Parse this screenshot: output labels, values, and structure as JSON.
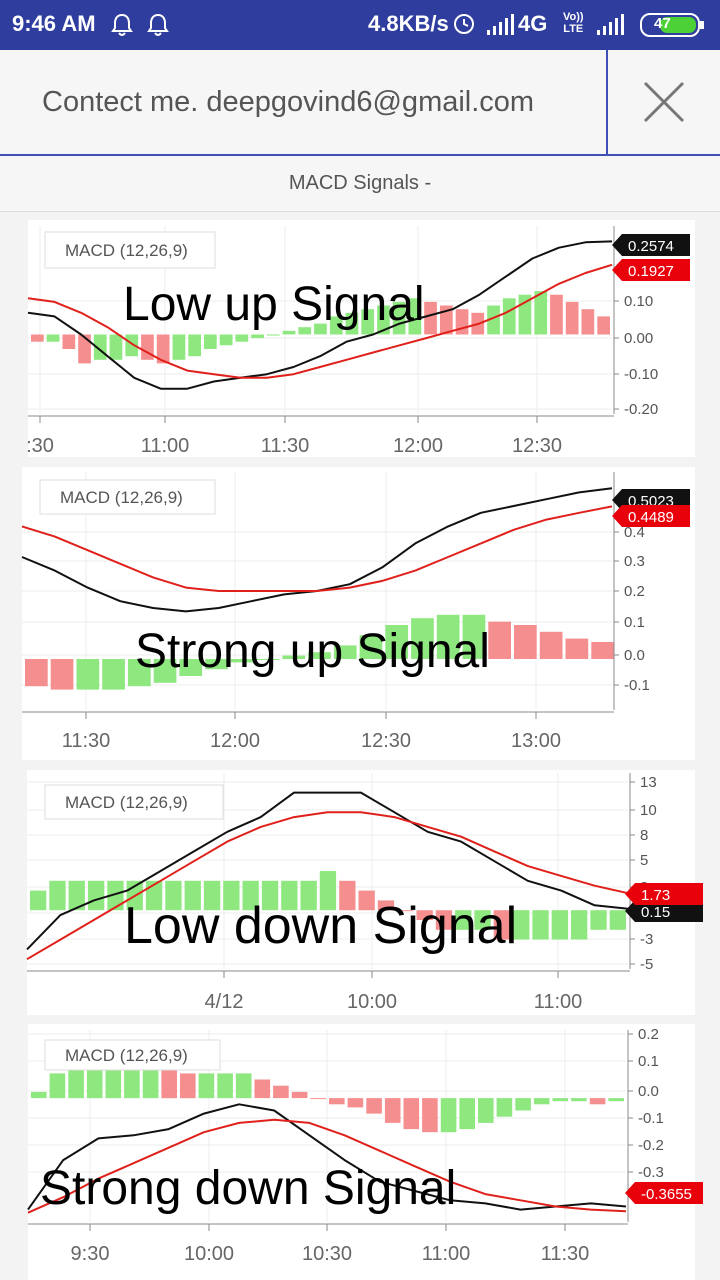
{
  "status_bar": {
    "time": "9:46 AM",
    "speed": "4.8KB/s",
    "network": "4G",
    "battery": "47",
    "volte_top": "Vo))",
    "volte_bottom": "LTE"
  },
  "header": {
    "contact_text": "Contect me. deepgovind6@gmail.com"
  },
  "subtitle": "MACD Signals -",
  "colors": {
    "status_bar": "#2f3e9e",
    "accent": "#3f51b5",
    "macd_line": "#111111",
    "signal_line": "#e0201a",
    "hist_up": "#8ee87f",
    "hist_down": "#f58f8f"
  },
  "chart_data": [
    {
      "type": "line",
      "indicator": "MACD (12,26,9)",
      "annotation": "Low up Signal",
      "x_ticks": [
        ":30",
        "11:00",
        "11:30",
        "12:00",
        "12:30"
      ],
      "y_ticks": [
        "0.10",
        "0.00",
        "-0.10",
        "-0.20"
      ],
      "ylim": [
        -0.22,
        0.3
      ],
      "series": [
        {
          "name": "MACD",
          "values": [
            0.06,
            0.05,
            0.0,
            -0.06,
            -0.12,
            -0.15,
            -0.15,
            -0.13,
            -0.12,
            -0.11,
            -0.09,
            -0.06,
            -0.02,
            0.0,
            0.03,
            0.05,
            0.07,
            0.11,
            0.16,
            0.21,
            0.24,
            0.255,
            0.2574
          ]
        },
        {
          "name": "Signal",
          "values": [
            0.1,
            0.09,
            0.06,
            0.02,
            -0.03,
            -0.07,
            -0.1,
            -0.11,
            -0.12,
            -0.12,
            -0.11,
            -0.09,
            -0.07,
            -0.05,
            -0.03,
            -0.01,
            0.01,
            0.03,
            0.06,
            0.1,
            0.14,
            0.17,
            0.1927
          ]
        }
      ],
      "histogram": [
        -0.02,
        -0.02,
        -0.04,
        -0.08,
        -0.07,
        -0.07,
        -0.06,
        -0.07,
        -0.08,
        -0.07,
        -0.06,
        -0.04,
        -0.03,
        -0.02,
        -0.01,
        0.0,
        0.01,
        0.02,
        0.03,
        0.05,
        0.06,
        0.07,
        0.08,
        0.09,
        0.1,
        0.09,
        0.08,
        0.07,
        0.06,
        0.08,
        0.1,
        0.11,
        0.12,
        0.11,
        0.09,
        0.07,
        0.05
      ],
      "labels": {
        "macd": "0.2574",
        "signal": "0.1927"
      }
    },
    {
      "type": "line",
      "indicator": "MACD (12,26,9)",
      "annotation": "Strong up Signal",
      "x_ticks": [
        "11:30",
        "12:00",
        "12:30",
        "13:00"
      ],
      "y_ticks": [
        "0.4",
        "0.3",
        "0.2",
        "0.1",
        "0.0",
        "-0.1"
      ],
      "ylim": [
        -0.15,
        0.55
      ],
      "series": [
        {
          "name": "MACD",
          "values": [
            0.3,
            0.26,
            0.21,
            0.17,
            0.15,
            0.14,
            0.15,
            0.17,
            0.19,
            0.2,
            0.22,
            0.27,
            0.34,
            0.39,
            0.43,
            0.45,
            0.47,
            0.49,
            0.5023
          ]
        },
        {
          "name": "Signal",
          "values": [
            0.39,
            0.36,
            0.32,
            0.28,
            0.24,
            0.21,
            0.2,
            0.2,
            0.2,
            0.2,
            0.21,
            0.23,
            0.26,
            0.3,
            0.34,
            0.38,
            0.41,
            0.43,
            0.4489
          ]
        }
      ],
      "histogram": [
        -0.08,
        -0.09,
        -0.09,
        -0.09,
        -0.08,
        -0.07,
        -0.05,
        -0.03,
        -0.01,
        0.0,
        0.01,
        0.02,
        0.04,
        0.07,
        0.1,
        0.12,
        0.13,
        0.13,
        0.11,
        0.1,
        0.08,
        0.06,
        0.05
      ],
      "labels": {
        "macd": "0.5023",
        "signal": "0.4489"
      }
    },
    {
      "type": "line",
      "indicator": "MACD (12,26,9)",
      "annotation": "Low down Signal",
      "x_ticks": [
        "4/12",
        "10:00",
        "11:00"
      ],
      "y_ticks": [
        "13",
        "10",
        "8",
        "5",
        "3",
        "0",
        "-3",
        "-5"
      ],
      "ylim": [
        -6,
        14
      ],
      "series": [
        {
          "name": "MACD",
          "values": [
            -4.0,
            -0.5,
            1.0,
            2.0,
            4.0,
            6.0,
            8.0,
            9.5,
            12.0,
            12.0,
            12.0,
            10.0,
            8.0,
            7.0,
            5.0,
            3.0,
            2.0,
            0.5,
            0.15
          ]
        },
        {
          "name": "Signal",
          "values": [
            -5.0,
            -3.0,
            -1.0,
            1.0,
            3.0,
            5.0,
            7.0,
            8.5,
            9.5,
            10.0,
            10.0,
            9.5,
            8.5,
            7.5,
            6.0,
            4.5,
            3.5,
            2.5,
            1.73
          ]
        }
      ],
      "histogram": [
        2.0,
        3.0,
        3.0,
        3.0,
        3.0,
        3.0,
        3.0,
        3.0,
        3.0,
        3.0,
        3.0,
        3.0,
        3.0,
        3.0,
        3.0,
        4.0,
        3.0,
        2.0,
        1.0,
        0.0,
        -1.0,
        -2.0,
        -2.0,
        -2.0,
        -3.0,
        -3.0,
        -3.0,
        -3.0,
        -3.0,
        -2.0,
        -2.0
      ],
      "labels": {
        "macd": "0.15",
        "signal": "1.73"
      }
    },
    {
      "type": "line",
      "indicator": "MACD (12,26,9)",
      "annotation": "Strong down Signal",
      "x_ticks": [
        "9:30",
        "10:00",
        "10:30",
        "11:00",
        "11:30"
      ],
      "y_ticks": [
        "0.2",
        "0.1",
        "0.0",
        "-0.1",
        "-0.2",
        "-0.3"
      ],
      "ylim": [
        -0.4,
        0.22
      ],
      "series": [
        {
          "name": "MACD",
          "values": [
            -0.36,
            -0.2,
            -0.13,
            -0.12,
            -0.1,
            -0.05,
            -0.02,
            -0.04,
            -0.12,
            -0.2,
            -0.27,
            -0.3,
            -0.33,
            -0.34,
            -0.36,
            -0.35,
            -0.34,
            -0.35
          ]
        },
        {
          "name": "Signal",
          "values": [
            -0.37,
            -0.32,
            -0.26,
            -0.21,
            -0.16,
            -0.11,
            -0.08,
            -0.07,
            -0.08,
            -0.12,
            -0.17,
            -0.22,
            -0.27,
            -0.31,
            -0.33,
            -0.35,
            -0.36,
            -0.3655
          ]
        }
      ],
      "histogram": [
        0.02,
        0.08,
        0.1,
        0.1,
        0.1,
        0.1,
        0.1,
        0.09,
        0.08,
        0.08,
        0.08,
        0.08,
        0.06,
        0.04,
        0.02,
        0.0,
        -0.02,
        -0.03,
        -0.05,
        -0.08,
        -0.1,
        -0.11,
        -0.11,
        -0.1,
        -0.08,
        -0.06,
        -0.04,
        -0.02,
        -0.01,
        -0.01,
        -0.02,
        -0.01
      ],
      "labels": {
        "signal": "-0.3655"
      }
    }
  ]
}
